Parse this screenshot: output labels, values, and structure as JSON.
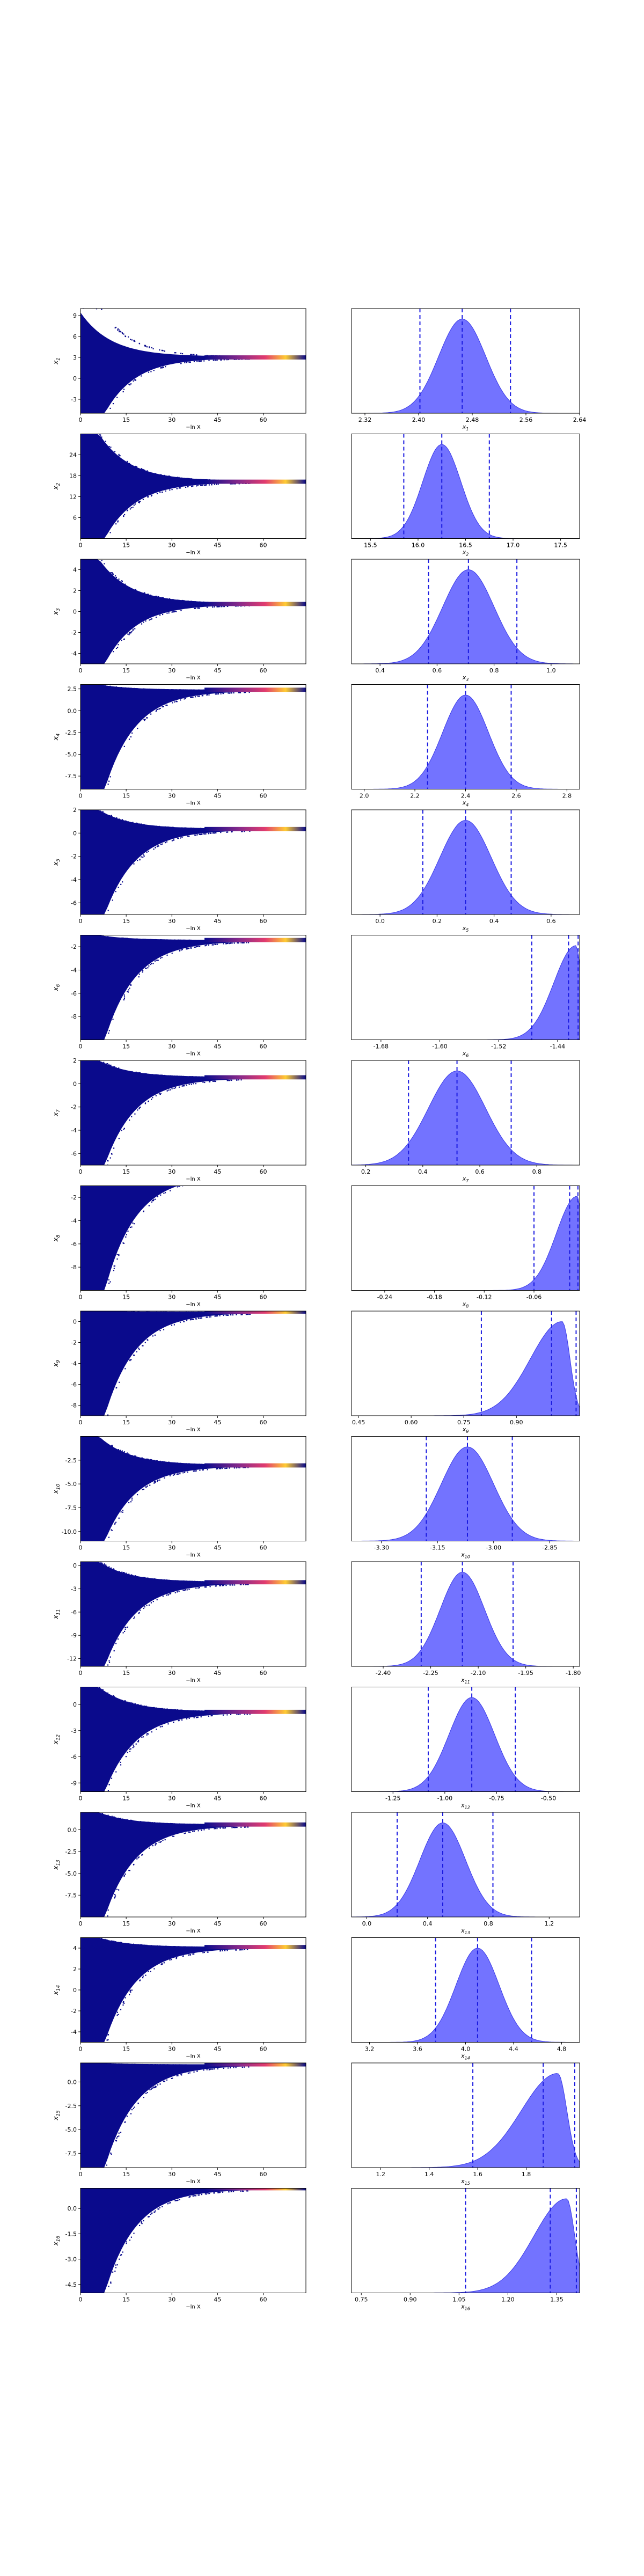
{
  "chart_data": {
    "type": "trace-and-posterior-grid",
    "rows": [
      {
        "param": "x_1",
        "trace_yticks": [
          "9",
          "6",
          "3",
          "0",
          "-3"
        ],
        "trace_ylim": [
          -5,
          10
        ],
        "trace_start": [
          -5,
          9
        ],
        "trace_converge": 3,
        "trace_scatter": [
          -1,
          4.5
        ],
        "hist_xticks": [
          "2.32",
          "2.40",
          "2.48",
          "2.56",
          "2.64"
        ],
        "hist_xlim": [
          2.3,
          2.64
        ],
        "peak": 2.465,
        "sigma": 0.035,
        "skew": 0,
        "vlines": [
          2.402,
          2.465,
          2.537
        ]
      },
      {
        "param": "x_2",
        "trace_yticks": [
          "24",
          "18",
          "12",
          "6"
        ],
        "trace_ylim": [
          0,
          30
        ],
        "trace_start": [
          0,
          30
        ],
        "trace_converge": 16.3,
        "trace_scatter": [
          -2,
          31
        ],
        "hist_xticks": [
          "15.5",
          "16.0",
          "16.5",
          "17.0",
          "17.5"
        ],
        "hist_xlim": [
          15.3,
          17.7
        ],
        "peak": 16.25,
        "sigma": 0.2,
        "skew": 0,
        "vlines": [
          15.85,
          16.25,
          16.75
        ]
      },
      {
        "param": "x_3",
        "trace_yticks": [
          "4",
          "2",
          "0",
          "-2",
          "-4"
        ],
        "trace_ylim": [
          -5,
          5
        ],
        "trace_start": [
          -5,
          5
        ],
        "trace_converge": 0.72,
        "trace_scatter": [
          -5,
          5
        ],
        "hist_xticks": [
          "0.4",
          "0.6",
          "0.8",
          "1.0"
        ],
        "hist_xlim": [
          0.3,
          1.1
        ],
        "peak": 0.71,
        "sigma": 0.09,
        "skew": 0,
        "vlines": [
          0.57,
          0.71,
          0.88
        ]
      },
      {
        "param": "x_4",
        "trace_yticks": [
          "2.5",
          "0.0",
          "-2.5",
          "-5.0",
          "-7.5"
        ],
        "trace_ylim": [
          -9,
          3
        ],
        "trace_start": [
          -9,
          3
        ],
        "trace_converge": 2.4,
        "trace_scatter": [
          -9,
          3
        ],
        "hist_xticks": [
          "2.0",
          "2.2",
          "2.4",
          "2.6",
          "2.8"
        ],
        "hist_xlim": [
          1.95,
          2.85
        ],
        "peak": 2.4,
        "sigma": 0.09,
        "skew": 0,
        "vlines": [
          2.25,
          2.4,
          2.58
        ]
      },
      {
        "param": "x_5",
        "trace_yticks": [
          "2",
          "0",
          "-2",
          "-4",
          "-6"
        ],
        "trace_ylim": [
          -7,
          2
        ],
        "trace_start": [
          -7,
          2
        ],
        "trace_converge": 0.35,
        "trace_scatter": [
          -7,
          2
        ],
        "hist_xticks": [
          "0.0",
          "0.2",
          "0.4",
          "0.6"
        ],
        "hist_xlim": [
          -0.1,
          0.7
        ],
        "peak": 0.3,
        "sigma": 0.09,
        "skew": 0,
        "vlines": [
          0.15,
          0.3,
          0.46
        ]
      },
      {
        "param": "x_6",
        "trace_yticks": [
          "-2",
          "-4",
          "-6",
          "-8"
        ],
        "trace_ylim": [
          -10,
          -1
        ],
        "trace_start": [
          -10,
          -1
        ],
        "trace_converge": -1.42,
        "trace_scatter": [
          -10,
          -1
        ],
        "hist_xticks": [
          "-1.68",
          "-1.60",
          "-1.52",
          "-1.44"
        ],
        "hist_xlim": [
          -1.72,
          -1.41
        ],
        "peak": -1.415,
        "sigma": 0.03,
        "skew": 1,
        "vlines": [
          -1.475,
          -1.425,
          -1.412
        ]
      },
      {
        "param": "x_7",
        "trace_yticks": [
          "2",
          "0",
          "-2",
          "-4",
          "-6"
        ],
        "trace_ylim": [
          -7,
          2
        ],
        "trace_start": [
          -7,
          2
        ],
        "trace_converge": 0.55,
        "trace_scatter": [
          -7,
          2
        ],
        "hist_xticks": [
          "0.2",
          "0.4",
          "0.6",
          "0.8"
        ],
        "hist_xlim": [
          0.15,
          0.95
        ],
        "peak": 0.52,
        "sigma": 0.1,
        "skew": 0,
        "vlines": [
          0.35,
          0.52,
          0.71
        ]
      },
      {
        "param": "x_8",
        "trace_yticks": [
          "-2",
          "-4",
          "-6",
          "-8"
        ],
        "trace_ylim": [
          -10,
          -1
        ],
        "trace_start": [
          -10,
          -1
        ],
        "trace_converge": -0.01,
        "trace_scatter": [
          -10,
          -1
        ],
        "hist_xticks": [
          "-0.24",
          "-0.18",
          "-0.12",
          "-0.06"
        ],
        "hist_xlim": [
          -0.28,
          -0.005
        ],
        "peak": -0.008,
        "sigma": 0.025,
        "skew": 1,
        "vlines": [
          -0.06,
          -0.017,
          -0.007
        ]
      },
      {
        "param": "x_9",
        "trace_yticks": [
          "0",
          "-2",
          "-4",
          "-6",
          "-8"
        ],
        "trace_ylim": [
          -9,
          1
        ],
        "trace_start": [
          -9,
          1
        ],
        "trace_converge": 0.95,
        "trace_scatter": [
          -9,
          1
        ],
        "hist_xticks": [
          "0.45",
          "0.60",
          "0.75",
          "0.90"
        ],
        "hist_xlim": [
          0.43,
          1.08
        ],
        "peak": 1.03,
        "sigma": 0.09,
        "skew": 1,
        "vlines": [
          0.8,
          1.0,
          1.07
        ]
      },
      {
        "param": "x_10",
        "trace_yticks": [
          "-2.5",
          "-5.0",
          "-7.5",
          "-10.0"
        ],
        "trace_ylim": [
          -11,
          0
        ],
        "trace_start": [
          -11,
          0
        ],
        "trace_converge": -3.05,
        "trace_scatter": [
          -11,
          0
        ],
        "hist_xticks": [
          "-3.30",
          "-3.15",
          "-3.00",
          "-2.85"
        ],
        "hist_xlim": [
          -3.38,
          -2.77
        ],
        "peak": -3.07,
        "sigma": 0.07,
        "skew": 0,
        "vlines": [
          -3.18,
          -3.07,
          -2.95
        ]
      },
      {
        "param": "x_11",
        "trace_yticks": [
          "0",
          "-3",
          "-6",
          "-9",
          "-12"
        ],
        "trace_ylim": [
          -13,
          0.5
        ],
        "trace_start": [
          -13,
          0.5
        ],
        "trace_converge": -2.15,
        "trace_scatter": [
          -13,
          0.5
        ],
        "hist_xticks": [
          "-2.40",
          "-2.25",
          "-2.10",
          "-1.95",
          "-1.80"
        ],
        "hist_xlim": [
          -2.5,
          -1.78
        ],
        "peak": -2.15,
        "sigma": 0.07,
        "skew": 0,
        "vlines": [
          -2.28,
          -2.15,
          -1.99
        ]
      },
      {
        "param": "x_12",
        "trace_yticks": [
          "0",
          "-3",
          "-6",
          "-9"
        ],
        "trace_ylim": [
          -10,
          2
        ],
        "trace_start": [
          -10,
          2
        ],
        "trace_converge": -0.85,
        "trace_scatter": [
          -10,
          2
        ],
        "hist_xticks": [
          "-1.25",
          "-1.00",
          "-0.75",
          "-0.50"
        ],
        "hist_xlim": [
          -1.45,
          -0.35
        ],
        "peak": -0.87,
        "sigma": 0.11,
        "skew": 0,
        "vlines": [
          -1.08,
          -0.87,
          -0.66
        ]
      },
      {
        "param": "x_13",
        "trace_yticks": [
          "0.0",
          "-2.5",
          "-5.0",
          "-7.5"
        ],
        "trace_ylim": [
          -10,
          2
        ],
        "trace_start": [
          -10,
          2
        ],
        "trace_converge": 0.6,
        "trace_scatter": [
          -10,
          2
        ],
        "hist_xticks": [
          "0.0",
          "0.4",
          "0.8",
          "1.2"
        ],
        "hist_xlim": [
          -0.1,
          1.4
        ],
        "peak": 0.5,
        "sigma": 0.15,
        "skew": 0,
        "vlines": [
          0.2,
          0.5,
          0.83
        ]
      },
      {
        "param": "x_14",
        "trace_yticks": [
          "4",
          "2",
          "0",
          "-2",
          "-4"
        ],
        "trace_ylim": [
          -5,
          5
        ],
        "trace_start": [
          -5,
          5
        ],
        "trace_converge": 4.1,
        "trace_scatter": [
          -5,
          5
        ],
        "hist_xticks": [
          "3.2",
          "3.6",
          "4.0",
          "4.4",
          "4.8"
        ],
        "hist_xlim": [
          3.05,
          4.95
        ],
        "peak": 4.1,
        "sigma": 0.18,
        "skew": 0,
        "vlines": [
          3.75,
          4.1,
          4.55
        ]
      },
      {
        "param": "x_15",
        "trace_yticks": [
          "0.0",
          "-2.5",
          "-5.0",
          "-7.5"
        ],
        "trace_ylim": [
          -9,
          2
        ],
        "trace_start": [
          -9,
          2
        ],
        "trace_converge": 1.85,
        "trace_scatter": [
          -9,
          2
        ],
        "hist_xticks": [
          "1.2",
          "1.4",
          "1.6",
          "1.8"
        ],
        "hist_xlim": [
          1.08,
          2.02
        ],
        "peak": 1.93,
        "sigma": 0.15,
        "skew": 1,
        "vlines": [
          1.58,
          1.87,
          2.0
        ]
      },
      {
        "param": "x_16",
        "trace_yticks": [
          "0.0",
          "-1.5",
          "-3.0",
          "-4.5"
        ],
        "trace_ylim": [
          -5,
          1.2
        ],
        "trace_start": [
          -5,
          1.2
        ],
        "trace_converge": 1.2,
        "trace_scatter": [
          -5,
          1.2
        ],
        "hist_xticks": [
          "0.75",
          "0.90",
          "1.05",
          "1.20",
          "1.35"
        ],
        "hist_xlim": [
          0.72,
          1.42
        ],
        "peak": 1.38,
        "sigma": 0.1,
        "skew": 1,
        "vlines": [
          1.07,
          1.33,
          1.41
        ]
      }
    ],
    "trace_xticks": [
      "0",
      "15",
      "30",
      "45",
      "60"
    ],
    "trace_xlim": [
      0,
      74
    ],
    "trace_xlabel": "−ln X",
    "colors": {
      "scatter": "#0a0a8c",
      "hist_fill": "#5a5aff",
      "vline": "#1a1ae0",
      "hot1": "#e23c6e",
      "hot2": "#ffcc33"
    }
  }
}
